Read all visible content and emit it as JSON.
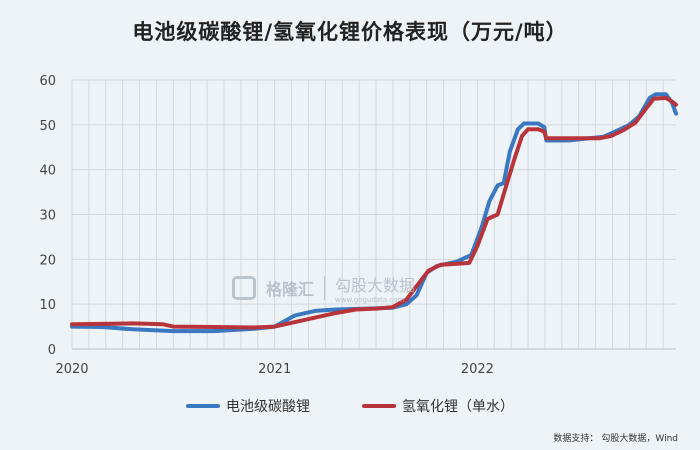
{
  "title": "电池级碳酸锂/氢氧化锂价格表现（万元/吨）",
  "watermark": {
    "brand": "格隆汇",
    "product": "勾股大数据",
    "url": "www.gogudata.com"
  },
  "source": {
    "prefix": "数据支持：",
    "text": "勾股大数据，Wind"
  },
  "colors": {
    "series_lithium_carbonate": "#3a78c2",
    "series_lithium_hydroxide": "#b7343b",
    "grid": "#d3d9df",
    "background": "#eef3f7"
  },
  "chart_data": {
    "type": "line",
    "title": "电池级碳酸锂/氢氧化锂价格表现（万元/吨）",
    "xlabel": "",
    "ylabel": "",
    "xlim": [
      2020.0,
      2022.98
    ],
    "ylim": [
      0,
      60
    ],
    "yticks": [
      0,
      10,
      20,
      30,
      40,
      50,
      60
    ],
    "xticks": [
      {
        "value": 2020,
        "label": "2020"
      },
      {
        "value": 2021,
        "label": "2021"
      },
      {
        "value": 2022,
        "label": "2022"
      }
    ],
    "grid": true,
    "legend": "bottom",
    "series": [
      {
        "name": "电池级碳酸锂",
        "color": "#3a78c2",
        "points": [
          [
            2020.0,
            5.0
          ],
          [
            2020.15,
            4.9
          ],
          [
            2020.3,
            4.4
          ],
          [
            2020.5,
            4.0
          ],
          [
            2020.7,
            4.0
          ],
          [
            2020.9,
            4.5
          ],
          [
            2021.0,
            5.0
          ],
          [
            2021.06,
            6.5
          ],
          [
            2021.1,
            7.5
          ],
          [
            2021.2,
            8.5
          ],
          [
            2021.3,
            8.8
          ],
          [
            2021.45,
            9.0
          ],
          [
            2021.58,
            9.2
          ],
          [
            2021.65,
            10.0
          ],
          [
            2021.7,
            12.0
          ],
          [
            2021.75,
            17.0
          ],
          [
            2021.8,
            18.5
          ],
          [
            2021.9,
            19.5
          ],
          [
            2021.97,
            21.0
          ],
          [
            2022.02,
            27.0
          ],
          [
            2022.06,
            33.0
          ],
          [
            2022.1,
            36.5
          ],
          [
            2022.13,
            37.0
          ],
          [
            2022.16,
            44.0
          ],
          [
            2022.2,
            49.0
          ],
          [
            2022.23,
            50.3
          ],
          [
            2022.3,
            50.3
          ],
          [
            2022.33,
            49.5
          ],
          [
            2022.34,
            46.5
          ],
          [
            2022.45,
            46.5
          ],
          [
            2022.55,
            47.0
          ],
          [
            2022.62,
            47.3
          ],
          [
            2022.68,
            48.5
          ],
          [
            2022.75,
            50.0
          ],
          [
            2022.8,
            52.0
          ],
          [
            2022.85,
            56.0
          ],
          [
            2022.88,
            56.8
          ],
          [
            2022.93,
            56.8
          ],
          [
            2022.96,
            55.0
          ],
          [
            2022.98,
            52.5
          ]
        ]
      },
      {
        "name": "氢氧化锂（单水）",
        "color": "#b7343b",
        "points": [
          [
            2020.0,
            5.5
          ],
          [
            2020.15,
            5.6
          ],
          [
            2020.3,
            5.7
          ],
          [
            2020.45,
            5.5
          ],
          [
            2020.5,
            5.0
          ],
          [
            2020.7,
            4.9
          ],
          [
            2020.9,
            4.8
          ],
          [
            2021.0,
            5.0
          ],
          [
            2021.1,
            6.0
          ],
          [
            2021.2,
            7.0
          ],
          [
            2021.3,
            8.0
          ],
          [
            2021.4,
            8.8
          ],
          [
            2021.5,
            9.0
          ],
          [
            2021.58,
            9.3
          ],
          [
            2021.65,
            11.0
          ],
          [
            2021.7,
            14.0
          ],
          [
            2021.76,
            17.5
          ],
          [
            2021.82,
            18.8
          ],
          [
            2021.9,
            19.0
          ],
          [
            2021.96,
            19.2
          ],
          [
            2022.0,
            23.0
          ],
          [
            2022.05,
            29.0
          ],
          [
            2022.1,
            30.0
          ],
          [
            2022.14,
            36.0
          ],
          [
            2022.18,
            42.0
          ],
          [
            2022.22,
            47.5
          ],
          [
            2022.25,
            49.0
          ],
          [
            2022.3,
            49.0
          ],
          [
            2022.33,
            48.5
          ],
          [
            2022.34,
            47.0
          ],
          [
            2022.45,
            47.0
          ],
          [
            2022.6,
            47.0
          ],
          [
            2022.66,
            47.5
          ],
          [
            2022.72,
            48.8
          ],
          [
            2022.78,
            50.5
          ],
          [
            2022.83,
            53.5
          ],
          [
            2022.87,
            55.8
          ],
          [
            2022.93,
            56.0
          ],
          [
            2022.96,
            55.2
          ],
          [
            2022.98,
            54.5
          ]
        ]
      }
    ]
  }
}
